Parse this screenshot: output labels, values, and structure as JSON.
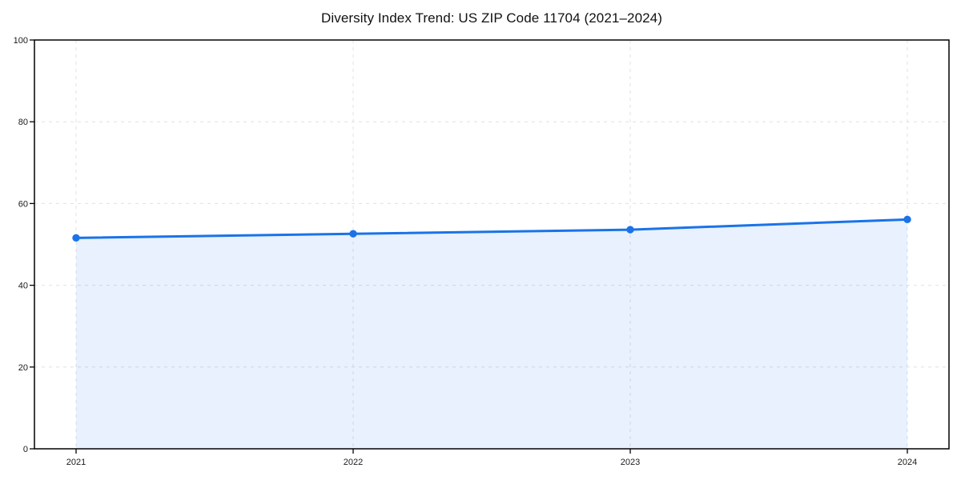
{
  "title": "Diversity Index Trend: US ZIP Code 11704 (2021–2024)",
  "chart_data": {
    "type": "line",
    "title": "Diversity Index Trend: US ZIP Code 11704 (2021–2024)",
    "x": [
      "2021",
      "2022",
      "2023",
      "2024"
    ],
    "series": [
      {
        "name": "Diversity Index",
        "values": [
          51.6,
          52.6,
          53.6,
          56.1
        ]
      }
    ],
    "xlabel": "",
    "ylabel": "",
    "ylim": [
      0,
      100
    ],
    "yticks": [
      0,
      20,
      40,
      60,
      80,
      100
    ],
    "grid": "dashed-both",
    "legend": "none",
    "area_fill": true,
    "colors": {
      "line": "#1A73E8",
      "marker": "#1A73E8",
      "fill": "rgba(26,115,232,0.10)",
      "grid": "#E0E0E0",
      "spine": "#000000",
      "tick_text": "#1a1a1a"
    }
  }
}
